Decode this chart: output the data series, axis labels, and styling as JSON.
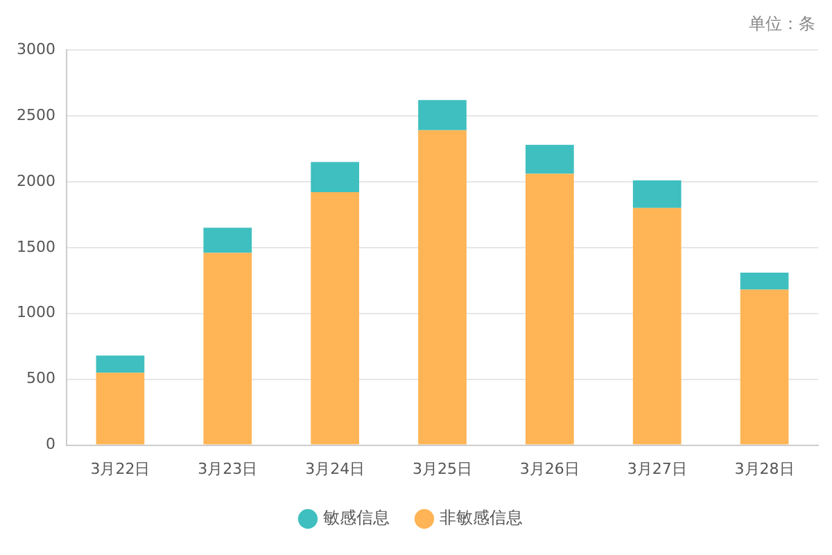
{
  "chart_data": {
    "type": "bar",
    "stacked": true,
    "categories": [
      "3月22日",
      "3月23日",
      "3月24日",
      "3月25日",
      "3月26日",
      "3月27日",
      "3月28日"
    ],
    "series": [
      {
        "name": "非敏感信息",
        "color": "#ffb455",
        "values": [
          550,
          1460,
          1920,
          2390,
          2060,
          1800,
          1180
        ]
      },
      {
        "name": "敏感信息",
        "color": "#3fbfbf",
        "values": [
          130,
          190,
          230,
          230,
          220,
          210,
          130
        ]
      }
    ],
    "ylim": [
      0,
      3000
    ],
    "yticks": [
      0,
      500,
      1000,
      1500,
      2000,
      2500,
      3000
    ],
    "grid": "y",
    "legend": "bottom",
    "annotations": [
      "单位：条"
    ]
  }
}
